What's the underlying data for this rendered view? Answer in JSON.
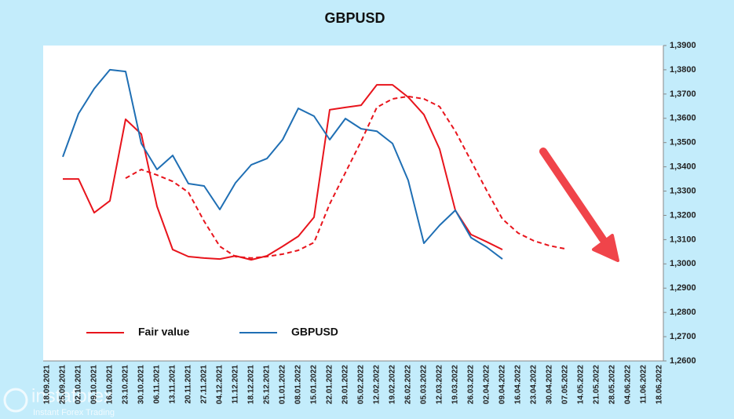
{
  "chart_data": {
    "type": "line",
    "title": "GBPUSD",
    "categories": [
      "18.09.2021",
      "25.09.2021",
      "02.10.2021",
      "09.10.2021",
      "16.10.2021",
      "23.10.2021",
      "30.10.2021",
      "06.11.2021",
      "13.11.2021",
      "20.11.2021",
      "27.11.2021",
      "04.12.2021",
      "11.12.2021",
      "18.12.2021",
      "25.12.2021",
      "01.01.2022",
      "08.01.2022",
      "15.01.2022",
      "22.01.2022",
      "29.01.2022",
      "05.02.2022",
      "12.02.2022",
      "19.02.2022",
      "26.02.2022",
      "05.03.2022",
      "12.03.2022",
      "19.03.2022",
      "26.03.2022",
      "02.04.2022",
      "09.04.2022",
      "16.04.2022",
      "23.04.2022",
      "30.04.2022",
      "07.05.2022",
      "14.05.2022",
      "21.05.2022",
      "28.05.2022",
      "04.06.2022",
      "11.06.2022",
      "18.06.2022"
    ],
    "series": [
      {
        "name": "Fair value",
        "color": "#e8141c",
        "values": [
          null,
          1.335,
          1.335,
          1.3211,
          1.326,
          1.3596,
          1.3535,
          1.3237,
          1.3059,
          1.303,
          1.3024,
          1.302,
          1.3033,
          1.3017,
          1.3033,
          1.3072,
          1.3114,
          1.3192,
          1.3635,
          1.3645,
          1.3654,
          1.3738,
          1.3738,
          1.3687,
          1.3615,
          1.3473,
          1.3221,
          1.3121,
          1.3091,
          1.3059,
          null,
          null,
          null,
          null,
          null,
          null,
          null,
          null,
          null,
          null
        ]
      },
      {
        "name": "GBPUSD",
        "color": "#1f6fb4",
        "values": [
          null,
          1.3441,
          1.3619,
          1.3722,
          1.38,
          1.3793,
          1.3496,
          1.3389,
          1.3447,
          1.3331,
          1.3321,
          1.3224,
          1.3334,
          1.3408,
          1.3434,
          1.3512,
          1.3641,
          1.3609,
          1.3512,
          1.3599,
          1.3557,
          1.3547,
          1.3496,
          1.3344,
          1.3085,
          1.3159,
          1.3221,
          1.3108,
          1.3069,
          1.302,
          null,
          null,
          null,
          null,
          null,
          null,
          null,
          null,
          null,
          null
        ]
      },
      {
        "color": "#e8141c",
        "dashed": true,
        "values": [
          null,
          null,
          null,
          null,
          null,
          1.3353,
          1.3389,
          1.3366,
          1.334,
          1.3295,
          1.3176,
          1.3072,
          1.303,
          1.3024,
          1.303,
          1.304,
          1.3056,
          1.3088,
          1.3247,
          1.3376,
          1.3505,
          1.3645,
          1.368,
          1.369,
          1.368,
          1.3648,
          1.3547,
          1.3425,
          1.3302,
          1.3185,
          1.3127,
          1.3095,
          1.3075,
          1.3062,
          null,
          null,
          null,
          null,
          null,
          null
        ]
      }
    ],
    "ylim": [
      1.26,
      1.39
    ],
    "yticks": [
      {
        "value": 1.26,
        "label": "1,2600"
      },
      {
        "value": 1.27,
        "label": "1,2700"
      },
      {
        "value": 1.28,
        "label": "1,2800"
      },
      {
        "value": 1.29,
        "label": "1,2900"
      },
      {
        "value": 1.3,
        "label": "1,3000"
      },
      {
        "value": 1.31,
        "label": "1,3100"
      },
      {
        "value": 1.32,
        "label": "1,3200"
      },
      {
        "value": 1.33,
        "label": "1,3300"
      },
      {
        "value": 1.34,
        "label": "1,3400"
      },
      {
        "value": 1.35,
        "label": "1,3500"
      },
      {
        "value": 1.36,
        "label": "1,3600"
      },
      {
        "value": 1.37,
        "label": "1,3700"
      },
      {
        "value": 1.38,
        "label": "1,3800"
      },
      {
        "value": 1.39,
        "label": "1,3900"
      }
    ],
    "grid": false,
    "y_axis_side": "right",
    "legend": "bottom-left"
  },
  "watermark": {
    "brand": "instaforex",
    "tagline": "Instant Forex Trading"
  }
}
